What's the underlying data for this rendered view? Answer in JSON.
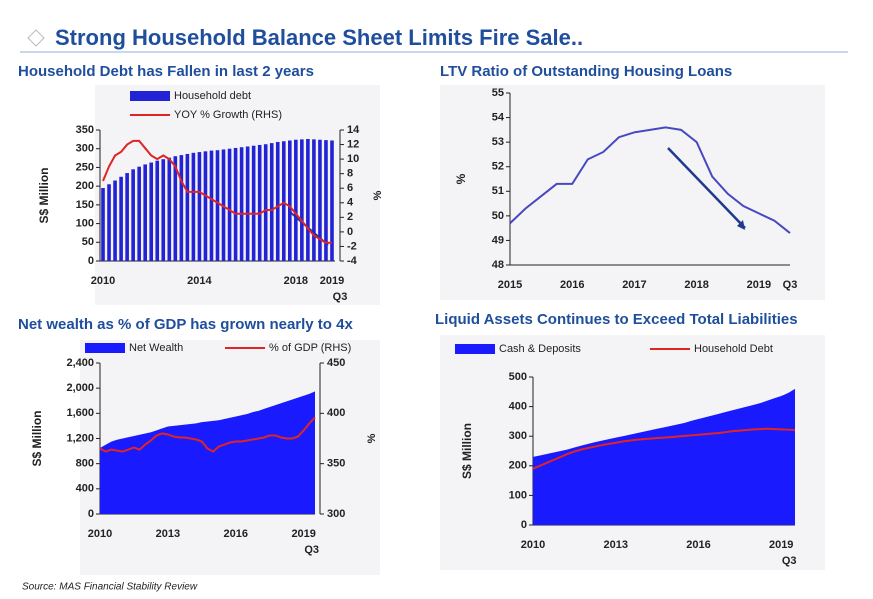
{
  "header": {
    "title": "Strong Household Balance Sheet Limits Fire Sale.."
  },
  "source": "Source:  MAS Financial Stability Review",
  "chart_data": [
    {
      "type": "bar",
      "title": "Household Debt has Fallen in last 2 years",
      "ylabel": "S$ Million",
      "y2label": "%",
      "categories": [
        "2010",
        null,
        null,
        null,
        null,
        null,
        null,
        null,
        null,
        null,
        null,
        null,
        null,
        null,
        null,
        null,
        "2014",
        null,
        null,
        null,
        null,
        null,
        null,
        null,
        null,
        null,
        null,
        null,
        null,
        null,
        null,
        null,
        "2018",
        null,
        null,
        null,
        null,
        null,
        "2019 Q3"
      ],
      "series": [
        {
          "name": "Household debt",
          "type": "bar",
          "color": "#2323d6",
          "values": [
            195,
            205,
            215,
            225,
            235,
            245,
            252,
            258,
            263,
            268,
            272,
            276,
            280,
            283,
            286,
            289,
            291,
            293,
            295,
            296,
            298,
            300,
            302,
            304,
            306,
            308,
            310,
            312,
            315,
            318,
            320,
            322,
            324,
            325,
            326,
            325,
            324,
            323,
            322
          ]
        },
        {
          "name": "YOY % Growth (RHS)",
          "type": "line",
          "axis": "y2",
          "color": "#e02424",
          "values": [
            7,
            9,
            10.5,
            11,
            12,
            12.5,
            12.5,
            11.5,
            10.5,
            10,
            10.5,
            10,
            9,
            7,
            5.5,
            5.5,
            5.5,
            5,
            4.5,
            4,
            3.5,
            3,
            2.5,
            2.5,
            2.5,
            2.5,
            2.5,
            3,
            3,
            3.5,
            4,
            3.5,
            2.5,
            1.5,
            0.5,
            -0.5,
            -1,
            -1.5,
            -1.5
          ]
        }
      ],
      "ylim": [
        0,
        350
      ],
      "yticks": [
        0,
        50,
        100,
        150,
        200,
        250,
        300,
        350
      ],
      "y2lim": [
        -4,
        14
      ],
      "y2ticks": [
        -4,
        -2,
        0,
        2,
        4,
        6,
        8,
        10,
        12,
        14
      ]
    },
    {
      "type": "line",
      "title": "LTV Ratio of Outstanding Housing Loans",
      "ylabel": "%",
      "categories": [
        "2015",
        null,
        null,
        null,
        "2016",
        null,
        null,
        null,
        "2017",
        null,
        null,
        null,
        "2018",
        null,
        null,
        null,
        "2019",
        null,
        "Q3"
      ],
      "series": [
        {
          "name": "LTV Ratio",
          "type": "line",
          "color": "#4848c0",
          "values": [
            49.7,
            50.3,
            50.8,
            51.3,
            51.3,
            52.3,
            52.6,
            53.2,
            53.4,
            53.5,
            53.6,
            53.5,
            53.0,
            51.6,
            50.9,
            50.4,
            50.1,
            49.8,
            49.3
          ]
        }
      ],
      "ylim": [
        48,
        55
      ],
      "yticks": [
        48,
        49,
        50,
        51,
        52,
        53,
        54,
        55
      ]
    },
    {
      "type": "area",
      "title": "Net wealth as % of GDP has grown nearly to 4x",
      "ylabel": "S$ Million",
      "y2label": "%",
      "categories": [
        "2010",
        null,
        null,
        null,
        null,
        null,
        null,
        null,
        null,
        null,
        null,
        null,
        "2013",
        null,
        null,
        null,
        null,
        null,
        null,
        null,
        null,
        null,
        null,
        null,
        "2016",
        null,
        null,
        null,
        null,
        null,
        null,
        null,
        null,
        null,
        null,
        null,
        "2019 Q3",
        null,
        null
      ],
      "series": [
        {
          "name": "Net Wealth",
          "type": "area",
          "color": "#1a1aff",
          "values": [
            1050,
            1100,
            1150,
            1180,
            1200,
            1220,
            1240,
            1260,
            1280,
            1300,
            1330,
            1360,
            1390,
            1400,
            1410,
            1420,
            1430,
            1440,
            1460,
            1470,
            1480,
            1490,
            1510,
            1530,
            1550,
            1570,
            1590,
            1620,
            1640,
            1670,
            1700,
            1730,
            1760,
            1790,
            1820,
            1850,
            1880,
            1910,
            1950
          ]
        },
        {
          "name": "% of GDP (RHS)",
          "type": "line",
          "axis": "y2",
          "color": "#e02424",
          "values": [
            365,
            362,
            364,
            363,
            362,
            364,
            366,
            364,
            369,
            373,
            378,
            380,
            379,
            377,
            376,
            376,
            375,
            374,
            372,
            365,
            362,
            367,
            369,
            371,
            372,
            372,
            373,
            374,
            375,
            376,
            378,
            378,
            376,
            375,
            375,
            377,
            383,
            390,
            396
          ]
        }
      ],
      "ylim": [
        0,
        2400
      ],
      "yticks": [
        0,
        400,
        800,
        {
          "value": 1200,
          "label": "1,200"
        },
        {
          "value": 1600,
          "label": "1,600"
        },
        {
          "value": 2000,
          "label": "2,000"
        },
        {
          "value": 2400,
          "label": "2,400"
        }
      ],
      "y2lim": [
        300,
        450
      ],
      "y2ticks": [
        300,
        350,
        400,
        450
      ]
    },
    {
      "type": "area",
      "title": "Liquid Assets Continues to Exceed Total Liabilities",
      "ylabel": "S$ Million",
      "categories": [
        "2010",
        null,
        null,
        null,
        null,
        null,
        null,
        null,
        null,
        null,
        null,
        null,
        "2013",
        null,
        null,
        null,
        null,
        null,
        null,
        null,
        null,
        null,
        null,
        null,
        "2016",
        null,
        null,
        null,
        null,
        null,
        null,
        null,
        null,
        null,
        null,
        null,
        "2019 Q3",
        null,
        null
      ],
      "series": [
        {
          "name": "Cash & Deposits",
          "type": "area",
          "color": "#1a1aff",
          "values": [
            230,
            235,
            240,
            245,
            250,
            255,
            262,
            268,
            274,
            280,
            285,
            290,
            295,
            300,
            305,
            310,
            315,
            320,
            325,
            330,
            335,
            340,
            345,
            352,
            358,
            364,
            370,
            376,
            382,
            388,
            394,
            400,
            406,
            412,
            420,
            428,
            436,
            446,
            460
          ]
        },
        {
          "name": "Household Debt",
          "type": "line",
          "color": "#e02424",
          "values": [
            190,
            200,
            210,
            220,
            230,
            240,
            248,
            255,
            260,
            265,
            270,
            274,
            278,
            282,
            285,
            288,
            290,
            292,
            294,
            295,
            297,
            299,
            301,
            303,
            305,
            307,
            309,
            311,
            314,
            317,
            319,
            321,
            323,
            324,
            325,
            324,
            323,
            322,
            321
          ]
        }
      ],
      "ylim": [
        0,
        500
      ],
      "yticks": [
        0,
        100,
        200,
        300,
        400,
        500
      ]
    }
  ]
}
